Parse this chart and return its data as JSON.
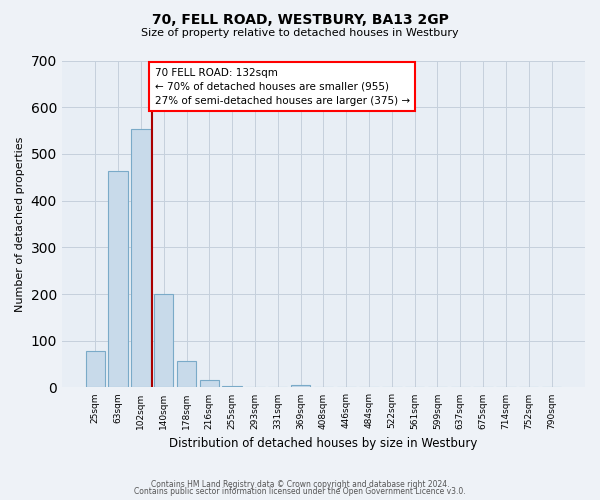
{
  "title": "70, FELL ROAD, WESTBURY, BA13 2GP",
  "subtitle": "Size of property relative to detached houses in Westbury",
  "xlabel": "Distribution of detached houses by size in Westbury",
  "ylabel": "Number of detached properties",
  "bar_labels": [
    "25sqm",
    "63sqm",
    "102sqm",
    "140sqm",
    "178sqm",
    "216sqm",
    "255sqm",
    "293sqm",
    "331sqm",
    "369sqm",
    "408sqm",
    "446sqm",
    "484sqm",
    "522sqm",
    "561sqm",
    "599sqm",
    "637sqm",
    "675sqm",
    "714sqm",
    "752sqm",
    "790sqm"
  ],
  "bar_values": [
    78,
    463,
    553,
    201,
    57,
    15,
    2,
    0,
    0,
    5,
    0,
    0,
    0,
    0,
    0,
    0,
    0,
    0,
    0,
    0,
    0
  ],
  "bar_color": "#c8daea",
  "bar_edge_color": "#7aaac8",
  "vline_color": "#aa0000",
  "ylim": [
    0,
    700
  ],
  "yticks": [
    0,
    100,
    200,
    300,
    400,
    500,
    600,
    700
  ],
  "annotation_line1": "70 FELL ROAD: 132sqm",
  "annotation_line2": "← 70% of detached houses are smaller (955)",
  "annotation_line3": "27% of semi-detached houses are larger (375) →",
  "footer_line1": "Contains HM Land Registry data © Crown copyright and database right 2024.",
  "footer_line2": "Contains public sector information licensed under the Open Government Licence v3.0.",
  "bg_color": "#eef2f7",
  "plot_bg_color": "#e8eef5",
  "grid_color": "#c5d0dc"
}
